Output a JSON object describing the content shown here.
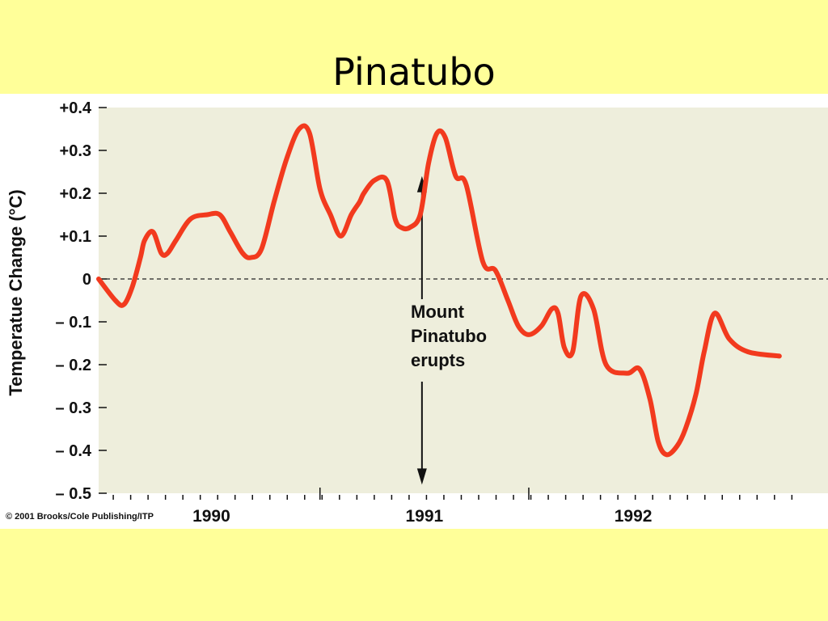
{
  "slide": {
    "title": "Pinatubo"
  },
  "credit": "© 2001 Brooks/Cole Publishing/ITP",
  "colors": {
    "slide_background": "#FFFF99",
    "plot_background": "#EEEEDC",
    "figure_background": "#FFFFFF",
    "line": "#F23A1E"
  },
  "chart_data": {
    "type": "line",
    "title": "",
    "xlabel": "",
    "ylabel": "Temperatue Change (°C)",
    "ylim": [
      -0.5,
      0.4
    ],
    "xlim": [
      1989.3,
      1992.7
    ],
    "y_ticks": [
      {
        "value": 0.4,
        "label": "+0.4"
      },
      {
        "value": 0.3,
        "label": "+0.3"
      },
      {
        "value": 0.2,
        "label": "+0.2"
      },
      {
        "value": 0.1,
        "label": "+0.1"
      },
      {
        "value": 0.0,
        "label": "0"
      },
      {
        "value": -0.1,
        "label": "– 0.1"
      },
      {
        "value": -0.2,
        "label": "– 0.2"
      },
      {
        "value": -0.3,
        "label": "– 0.3"
      },
      {
        "value": -0.4,
        "label": "– 0.4"
      },
      {
        "value": -0.5,
        "label": "– 0.5"
      }
    ],
    "x_year_labels": [
      {
        "value": 1989.84,
        "label": "1990"
      },
      {
        "value": 1990.86,
        "label": "1991"
      },
      {
        "value": 1991.86,
        "label": "1992"
      }
    ],
    "zero_line": "dashed",
    "grid": false,
    "annotation": {
      "lines": [
        "Mount",
        "Pinatubo",
        "erupts"
      ],
      "x": 1990.86,
      "arrow_top_value": 0.24,
      "arrow_bottom_value": -0.48
    },
    "series": [
      {
        "x": [
          1989.3,
          1989.38,
          1989.42,
          1989.46,
          1989.5,
          1989.52,
          1989.56,
          1989.6,
          1989.63,
          1989.67,
          1989.74,
          1989.82,
          1989.88,
          1989.93,
          1989.99,
          1990.03,
          1990.08,
          1990.14,
          1990.2,
          1990.26,
          1990.31,
          1990.36,
          1990.41,
          1990.46,
          1990.51,
          1990.55,
          1990.57,
          1990.62,
          1990.68,
          1990.72,
          1990.75,
          1990.79,
          1990.84,
          1990.88,
          1990.92,
          1990.96,
          1991.01,
          1991.06,
          1991.14,
          1991.2,
          1991.26,
          1991.31,
          1991.36,
          1991.42,
          1991.47,
          1991.5,
          1991.53,
          1991.57,
          1991.61,
          1991.67,
          1991.73,
          1991.83,
          1991.89,
          1991.94,
          1991.98,
          1992.02,
          1992.07,
          1992.11,
          1992.16,
          1992.2,
          1992.25,
          1992.32,
          1992.41,
          1992.56
        ],
        "y": [
          0.0,
          -0.05,
          -0.06,
          -0.02,
          0.05,
          0.09,
          0.11,
          0.06,
          0.06,
          0.09,
          0.14,
          0.15,
          0.15,
          0.11,
          0.06,
          0.05,
          0.07,
          0.18,
          0.28,
          0.35,
          0.34,
          0.21,
          0.15,
          0.1,
          0.15,
          0.18,
          0.2,
          0.23,
          0.23,
          0.14,
          0.12,
          0.12,
          0.15,
          0.27,
          0.34,
          0.33,
          0.24,
          0.22,
          0.04,
          0.02,
          -0.05,
          -0.11,
          -0.13,
          -0.11,
          -0.07,
          -0.08,
          -0.16,
          -0.17,
          -0.04,
          -0.07,
          -0.2,
          -0.22,
          -0.21,
          -0.28,
          -0.38,
          -0.41,
          -0.39,
          -0.35,
          -0.27,
          -0.17,
          -0.08,
          -0.14,
          -0.17,
          -0.18
        ]
      }
    ]
  }
}
